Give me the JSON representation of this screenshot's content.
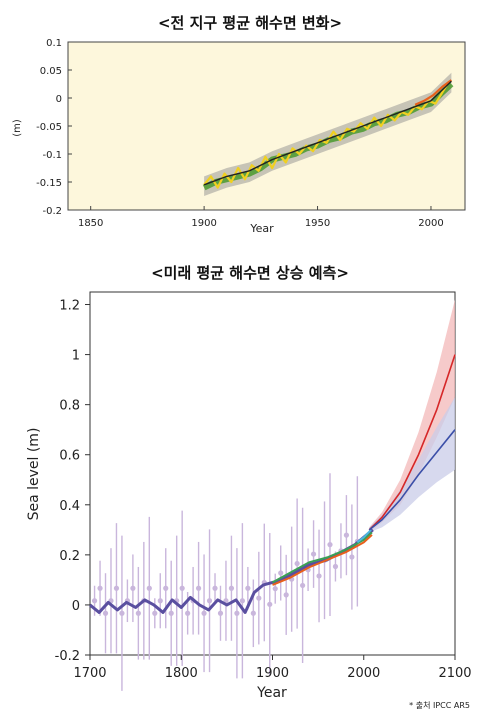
{
  "chart_data": [
    {
      "type": "line",
      "title": "<전 지구 평균 해수면 변화>",
      "xlabel": "Year",
      "ylabel": "(m)",
      "xlim": [
        1840,
        2015
      ],
      "ylim": [
        -0.2,
        0.1
      ],
      "xticks": [
        1850,
        1900,
        1950,
        2000
      ],
      "yticks": [
        0.1,
        0.05,
        0,
        -0.05,
        -0.1,
        -0.15,
        -0.2
      ],
      "background": "#fdf7dc",
      "grid": false,
      "series": [
        {
          "color": "#4a9a2e",
          "x": [
            1900,
            1905,
            1910,
            1915,
            1920,
            1925,
            1930,
            1935,
            1940,
            1945,
            1950,
            1955,
            1960,
            1965,
            1970,
            1975,
            1980,
            1985,
            1990,
            1995,
            2000,
            2005,
            2009
          ],
          "y": [
            -0.16,
            -0.15,
            -0.145,
            -0.14,
            -0.135,
            -0.125,
            -0.11,
            -0.105,
            -0.1,
            -0.09,
            -0.085,
            -0.075,
            -0.07,
            -0.06,
            -0.055,
            -0.045,
            -0.04,
            -0.03,
            -0.025,
            -0.015,
            -0.01,
            0.01,
            0.025
          ]
        },
        {
          "color": "#f0d020",
          "x": [
            1900,
            1903,
            1906,
            1909,
            1912,
            1915,
            1918,
            1921,
            1924,
            1927,
            1930,
            1933,
            1936,
            1939,
            1942,
            1945,
            1948,
            1951,
            1954,
            1957,
            1960,
            1963,
            1966,
            1969,
            1972,
            1975,
            1978,
            1981,
            1984,
            1987,
            1990,
            1993,
            1996,
            1999,
            2002,
            2005,
            2008
          ],
          "y": [
            -0.155,
            -0.14,
            -0.16,
            -0.135,
            -0.15,
            -0.125,
            -0.145,
            -0.12,
            -0.13,
            -0.105,
            -0.125,
            -0.1,
            -0.115,
            -0.09,
            -0.1,
            -0.085,
            -0.095,
            -0.075,
            -0.08,
            -0.06,
            -0.075,
            -0.055,
            -0.06,
            -0.045,
            -0.055,
            -0.035,
            -0.05,
            -0.03,
            -0.04,
            -0.025,
            -0.03,
            -0.015,
            -0.02,
            -0.005,
            -0.01,
            0.01,
            0.03
          ]
        },
        {
          "color": "#e8601c",
          "x": [
            1993,
            1997,
            2001,
            2005,
            2009
          ],
          "y": [
            -0.012,
            -0.005,
            0.005,
            0.02,
            0.032
          ]
        },
        {
          "color": "#222222",
          "x": [
            1900,
            1910,
            1920,
            1930,
            1940,
            1950,
            1960,
            1970,
            1980,
            1990,
            2000,
            2009
          ],
          "y": [
            -0.155,
            -0.14,
            -0.13,
            -0.11,
            -0.095,
            -0.08,
            -0.065,
            -0.05,
            -0.035,
            -0.02,
            -0.005,
            0.03
          ]
        }
      ]
    },
    {
      "type": "line",
      "title": "<미래 평균 해수면 상승 예측>",
      "xlabel": "Year",
      "ylabel": "Sea  level (m)",
      "xlim": [
        1700,
        2100
      ],
      "ylim": [
        -0.2,
        1.25
      ],
      "xticks": [
        1700,
        1800,
        1900,
        2000,
        2100
      ],
      "yticks": [
        -0.2,
        0,
        0.2,
        0.4,
        0.6,
        0.8,
        1,
        1.2
      ],
      "grid": false,
      "series": [
        {
          "color": "#5a4fa0",
          "x": [
            1700,
            1710,
            1720,
            1730,
            1740,
            1750,
            1760,
            1770,
            1780,
            1790,
            1800,
            1810,
            1820,
            1830,
            1840,
            1850,
            1860,
            1870,
            1880,
            1890,
            1900,
            1910,
            1920,
            1930,
            1940,
            1950,
            1960,
            1970,
            1980,
            1990,
            2000,
            2010
          ],
          "y": [
            0.0,
            -0.03,
            0.01,
            -0.02,
            0.01,
            -0.01,
            0.02,
            0.0,
            -0.03,
            0.02,
            -0.01,
            0.03,
            0.0,
            -0.02,
            0.02,
            0.0,
            0.02,
            -0.03,
            0.05,
            0.08,
            0.09,
            0.1,
            0.12,
            0.14,
            0.16,
            0.17,
            0.18,
            0.2,
            0.22,
            0.24,
            0.27,
            0.3
          ]
        },
        {
          "color": "#3aa055",
          "x": [
            1900,
            1920,
            1940,
            1960,
            1980,
            2000,
            2009
          ],
          "y": [
            0.09,
            0.13,
            0.17,
            0.19,
            0.22,
            0.26,
            0.29
          ]
        },
        {
          "color": "#e8601c",
          "x": [
            1900,
            1920,
            1940,
            1960,
            1980,
            2000,
            2009
          ],
          "y": [
            0.08,
            0.11,
            0.15,
            0.18,
            0.21,
            0.25,
            0.28
          ]
        },
        {
          "color": "#4ab8e0",
          "x": [
            1993,
            2000,
            2008
          ],
          "y": [
            0.25,
            0.27,
            0.3
          ]
        },
        {
          "color": "#d62728",
          "x": [
            2006,
            2020,
            2040,
            2060,
            2080,
            2100
          ],
          "y": [
            0.3,
            0.35,
            0.45,
            0.6,
            0.78,
            1.0
          ]
        },
        {
          "color": "#3b4fa8",
          "x": [
            2006,
            2020,
            2040,
            2060,
            2080,
            2100
          ],
          "y": [
            0.3,
            0.34,
            0.42,
            0.52,
            0.61,
            0.7
          ]
        }
      ],
      "bands": [
        {
          "color": "#f3b8b8",
          "x": [
            2006,
            2020,
            2040,
            2060,
            2080,
            2100
          ],
          "lower": [
            0.29,
            0.33,
            0.4,
            0.52,
            0.67,
            0.83
          ],
          "upper": [
            0.31,
            0.37,
            0.5,
            0.69,
            0.93,
            1.22
          ]
        },
        {
          "color": "#c9cce8",
          "x": [
            2006,
            2020,
            2040,
            2060,
            2080,
            2100
          ],
          "lower": [
            0.29,
            0.31,
            0.36,
            0.43,
            0.49,
            0.54
          ],
          "upper": [
            0.31,
            0.36,
            0.46,
            0.58,
            0.71,
            0.83
          ]
        }
      ]
    }
  ],
  "source_note": "* 출처 IPCC AR5"
}
